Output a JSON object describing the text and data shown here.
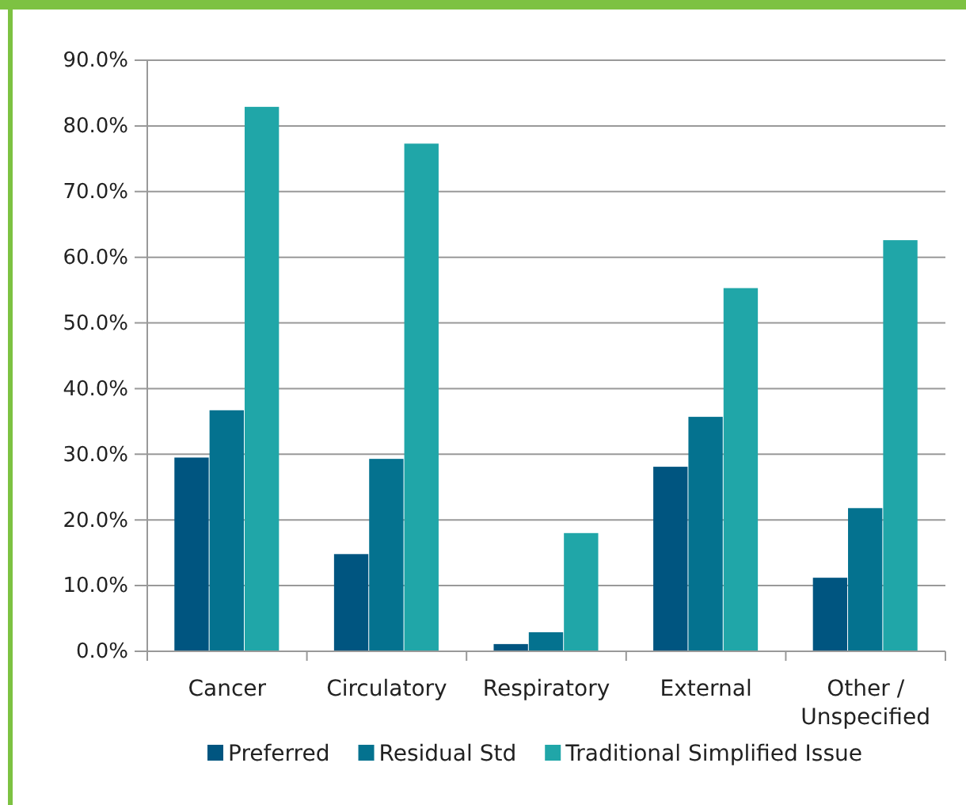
{
  "chart_data": {
    "type": "bar",
    "categories": [
      "Cancer",
      "Circulatory",
      "Respiratory",
      "External",
      "Other / Unspecified"
    ],
    "series": [
      {
        "name": "Preferred",
        "color": "#005580",
        "values": [
          29.5,
          14.8,
          1.1,
          28.1,
          11.2
        ]
      },
      {
        "name": "Residual Std",
        "color": "#04728f",
        "values": [
          36.7,
          29.3,
          2.9,
          35.7,
          21.8
        ]
      },
      {
        "name": "Traditional Simplified Issue",
        "color": "#20a6a8",
        "values": [
          82.9,
          77.3,
          18.0,
          55.3,
          62.6
        ]
      }
    ],
    "ylim": [
      0,
      90
    ],
    "yticks": [
      {
        "value": 0,
        "label": "0.0%"
      },
      {
        "value": 10,
        "label": "10.0%"
      },
      {
        "value": 20,
        "label": "20.0%"
      },
      {
        "value": 30,
        "label": "30.0%"
      },
      {
        "value": 40,
        "label": "40.0%"
      },
      {
        "value": 50,
        "label": "50.0%"
      },
      {
        "value": 60,
        "label": "60.0%"
      },
      {
        "value": 70,
        "label": "70.0%"
      },
      {
        "value": 80,
        "label": "80.0%"
      },
      {
        "value": 90,
        "label": "90.0%"
      }
    ],
    "grid": "y",
    "legend": "bottom"
  }
}
